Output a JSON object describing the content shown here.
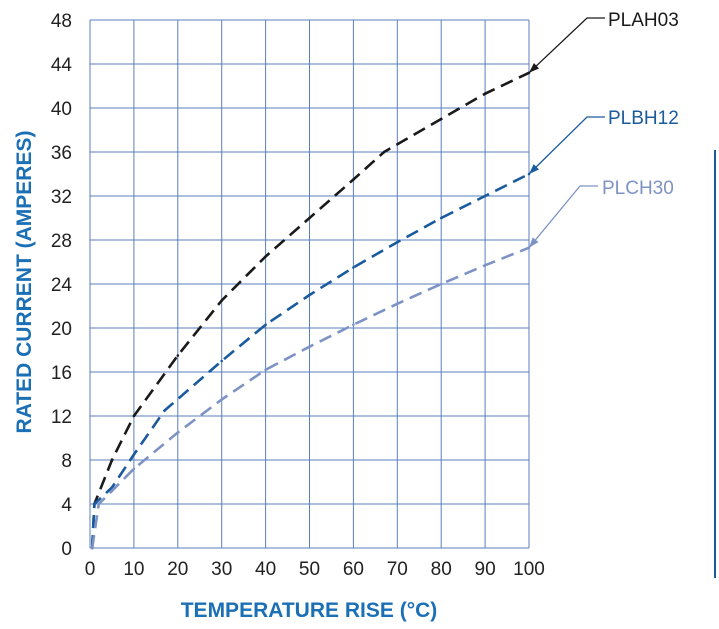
{
  "chart_data": {
    "type": "line",
    "xlabel": "TEMPERATURE RISE (°C)",
    "ylabel": "RATED CURRENT (AMPERES)",
    "xlim": [
      0,
      100
    ],
    "ylim": [
      0,
      48
    ],
    "x_ticks": [
      "0",
      "10",
      "20",
      "30",
      "40",
      "50",
      "60",
      "70",
      "80",
      "90",
      "100"
    ],
    "y_ticks": [
      "0",
      "4",
      "8",
      "12",
      "16",
      "20",
      "24",
      "28",
      "32",
      "36",
      "40",
      "44",
      "48"
    ],
    "grid": true,
    "line_style": "dashed",
    "series": [
      {
        "name": "PLAH03",
        "color": "#1a1a1a",
        "x": [
          0.5,
          1,
          5,
          10,
          20,
          30,
          40,
          50,
          60,
          67,
          80,
          90,
          100
        ],
        "y": [
          0,
          4,
          8,
          12,
          17.5,
          22.5,
          26.5,
          30,
          33.5,
          36,
          39,
          41.3,
          43.2
        ]
      },
      {
        "name": "PLBH12",
        "color": "#1a5b9e",
        "x": [
          0.5,
          1,
          5,
          10,
          17,
          30,
          40,
          50,
          60,
          70,
          80,
          90,
          100
        ],
        "y": [
          0,
          4,
          5.5,
          8.5,
          12.5,
          17,
          20.3,
          23,
          25.5,
          27.8,
          30,
          32,
          34
        ]
      },
      {
        "name": "PLCH30",
        "color": "#7d93c5",
        "x": [
          0.5,
          2,
          5,
          10,
          20,
          30,
          40,
          50,
          60,
          70,
          80,
          90,
          100
        ],
        "y": [
          0,
          4,
          5.2,
          7.2,
          10.5,
          13.5,
          16.2,
          18.3,
          20.3,
          22.2,
          24,
          25.7,
          27.3
        ]
      }
    ]
  }
}
